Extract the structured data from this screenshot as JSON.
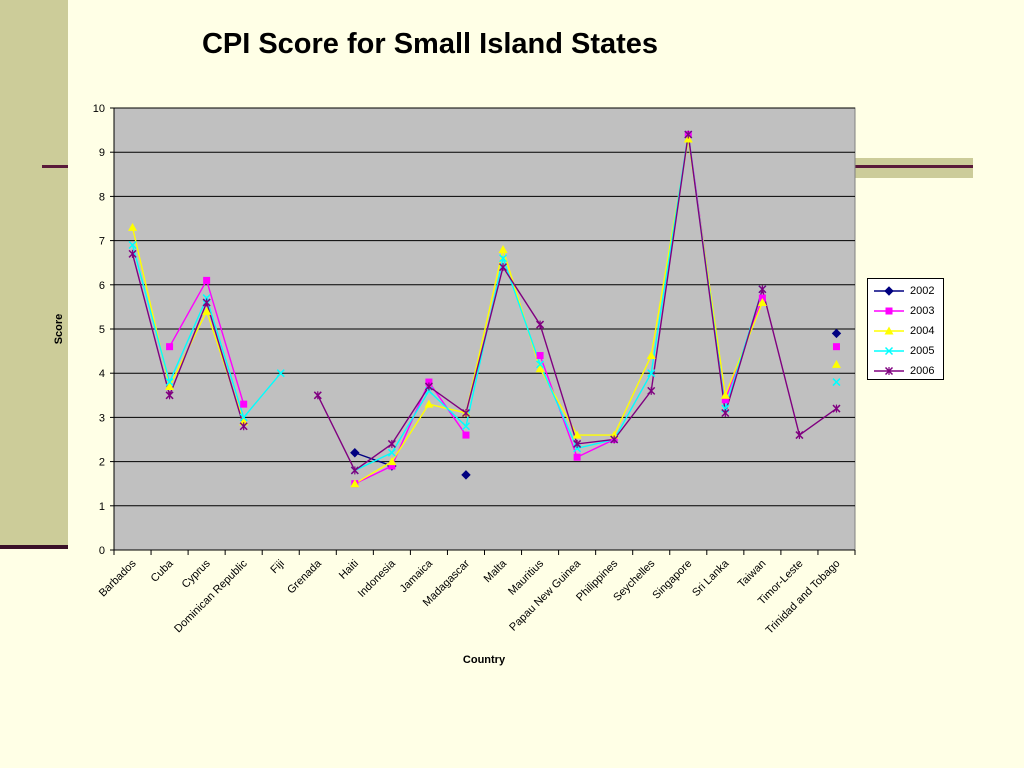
{
  "title": "CPI Score for Small Island States",
  "chart_data": {
    "type": "line",
    "title": "CPI Score for Small Island States",
    "xlabel": "Country",
    "ylabel": "Score",
    "ylim": [
      0,
      10
    ],
    "yticks": [
      0,
      1,
      2,
      3,
      4,
      5,
      6,
      7,
      8,
      9,
      10
    ],
    "grid": true,
    "legend_position": "right",
    "categories": [
      "Barbados",
      "Cuba",
      "Cyprus",
      "Dominican Republic",
      "Fiji",
      "Grenada",
      "Haiti",
      "Indonesia",
      "Jamaica",
      "Madagascar",
      "Malta",
      "Mauritius",
      "Papau New Guinea",
      "Philippines",
      "Seychelles",
      "Singapore",
      "Sri Lanka",
      "Taiwan",
      "Timor-Leste",
      "Trinidad and Tobago"
    ],
    "series": [
      {
        "name": "2002",
        "color": "#000080",
        "marker": "diamond",
        "values": [
          null,
          null,
          null,
          null,
          null,
          null,
          2.2,
          1.9,
          null,
          1.7,
          null,
          null,
          null,
          null,
          null,
          null,
          null,
          null,
          null,
          4.9
        ]
      },
      {
        "name": "2003",
        "color": "#ff00ff",
        "marker": "square",
        "values": [
          null,
          4.6,
          6.1,
          3.3,
          null,
          null,
          1.5,
          1.9,
          3.8,
          2.6,
          null,
          4.4,
          2.1,
          2.5,
          null,
          9.4,
          3.4,
          5.7,
          null,
          4.6
        ]
      },
      {
        "name": "2004",
        "color": "#ffff00",
        "marker": "triangle",
        "values": [
          7.3,
          3.7,
          5.4,
          2.9,
          null,
          null,
          1.5,
          2.0,
          3.3,
          3.1,
          6.8,
          4.1,
          2.6,
          2.6,
          4.4,
          9.3,
          3.5,
          5.6,
          null,
          4.2
        ]
      },
      {
        "name": "2005",
        "color": "#00ffff",
        "marker": "x",
        "values": [
          6.9,
          3.8,
          5.7,
          3.0,
          4.0,
          null,
          1.8,
          2.2,
          3.6,
          2.8,
          6.6,
          4.2,
          2.3,
          2.5,
          4.0,
          9.4,
          3.2,
          5.9,
          null,
          3.8
        ]
      },
      {
        "name": "2006",
        "color": "#800080",
        "marker": "star",
        "values": [
          6.7,
          3.5,
          5.6,
          2.8,
          null,
          3.5,
          1.8,
          2.4,
          3.7,
          3.1,
          6.4,
          5.1,
          2.4,
          2.5,
          3.6,
          9.4,
          3.1,
          5.9,
          2.6,
          3.2
        ]
      }
    ]
  }
}
